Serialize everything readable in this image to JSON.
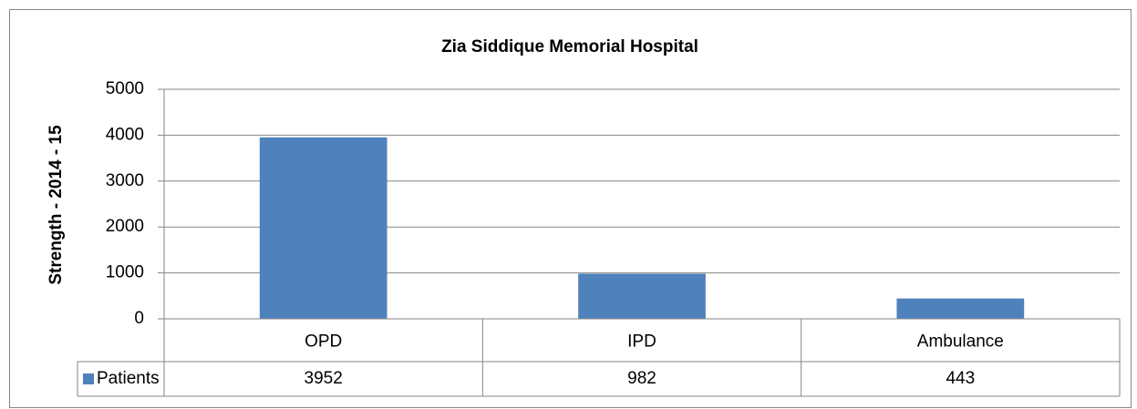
{
  "chart_data": {
    "type": "bar",
    "title": "Zia Siddique Memorial Hospital",
    "y_label": "Strength - 2014 - 15",
    "categories": [
      "OPD",
      "IPD",
      "Ambulance"
    ],
    "series": [
      {
        "name": "Patients",
        "color": "#4f81bd",
        "values": [
          3952,
          982,
          443
        ]
      }
    ],
    "ylim": [
      0,
      5000
    ],
    "yticks": [
      0,
      1000,
      2000,
      3000,
      4000,
      5000
    ],
    "grid": true,
    "data_table": true
  }
}
